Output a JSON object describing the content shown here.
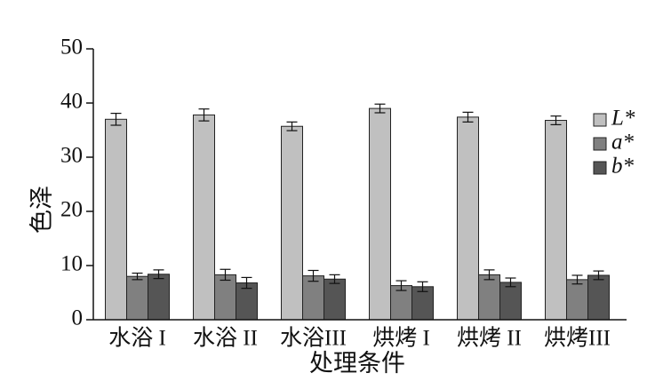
{
  "chart_data": {
    "type": "bar",
    "categories": [
      "水浴 I",
      "水浴 II",
      "水浴III",
      "烘烤 I",
      "烘烤 II",
      "烘烤III"
    ],
    "x_label": "处理条件",
    "y_label": "色泽",
    "series": [
      {
        "name": "L*",
        "color": "#c0c0c0",
        "values": [
          37.0,
          37.8,
          35.7,
          39.0,
          37.4,
          36.8
        ],
        "errors": [
          1.1,
          1.1,
          0.8,
          0.8,
          0.9,
          0.8
        ]
      },
      {
        "name": "a*",
        "color": "#808080",
        "values": [
          8.0,
          8.3,
          8.1,
          6.3,
          8.3,
          7.4
        ],
        "errors": [
          0.6,
          1.0,
          1.0,
          0.9,
          0.9,
          0.8
        ]
      },
      {
        "name": "b*",
        "color": "#555555",
        "values": [
          8.4,
          6.8,
          7.5,
          6.1,
          6.9,
          8.2
        ],
        "errors": [
          0.8,
          1.0,
          0.8,
          0.9,
          0.8,
          0.8
        ]
      }
    ],
    "ylim": [
      0,
      50
    ],
    "yticks": [
      0,
      10,
      20,
      30,
      40,
      50
    ],
    "grid": false,
    "legend": "right"
  }
}
